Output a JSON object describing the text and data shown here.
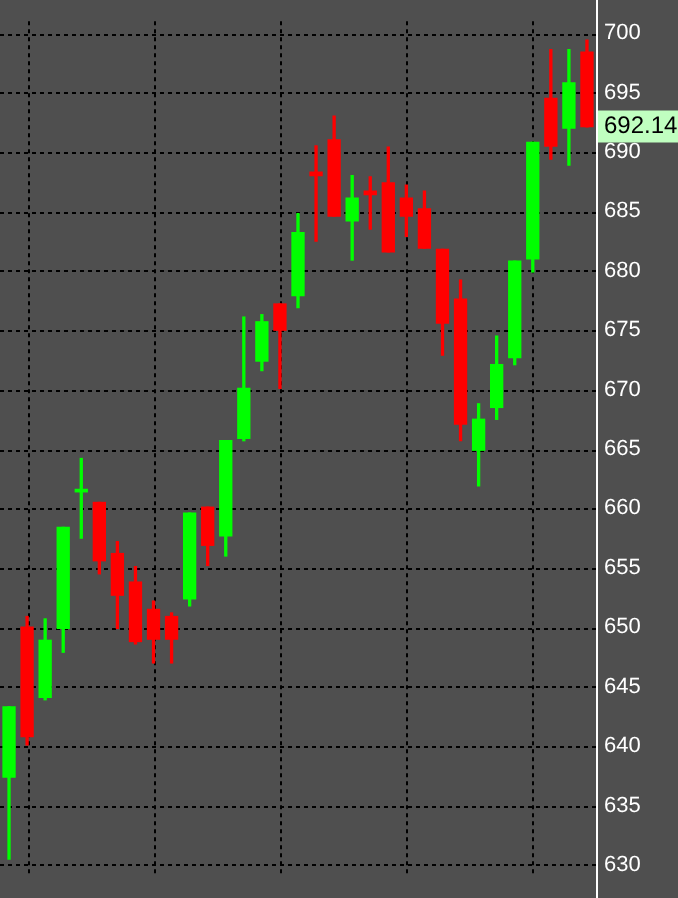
{
  "chart_data": {
    "type": "candlestick",
    "categories": [
      null,
      null,
      null,
      null,
      null,
      null,
      null,
      null,
      null,
      null,
      null,
      null,
      null,
      null,
      null,
      null,
      null,
      null,
      null,
      null,
      null,
      null,
      null,
      null,
      null,
      null,
      null,
      null,
      null,
      null,
      null,
      null,
      null
    ],
    "ohlc": [
      [
        637.4,
        643.3,
        630.5,
        643.3
      ],
      [
        650.0,
        650.9,
        640.1,
        640.8
      ],
      [
        644.1,
        650.7,
        643.9,
        648.9
      ],
      [
        649.9,
        658.4,
        647.9,
        658.4
      ],
      [
        661.4,
        664.2,
        657.5,
        661.6
      ],
      [
        660.5,
        660.5,
        654.5,
        655.6
      ],
      [
        656.2,
        657.2,
        649.9,
        652.7
      ],
      [
        653.8,
        655.1,
        648.6,
        648.8
      ],
      [
        651.5,
        652.2,
        647.0,
        649.0
      ],
      [
        650.9,
        651.2,
        647.0,
        649.0
      ],
      [
        652.4,
        659.6,
        651.8,
        659.6
      ],
      [
        660.1,
        660.1,
        655.2,
        656.9
      ],
      [
        657.7,
        665.7,
        656.0,
        665.7
      ],
      [
        665.9,
        676.1,
        665.7,
        670.1
      ],
      [
        672.4,
        676.3,
        671.6,
        675.7
      ],
      [
        677.2,
        677.2,
        670.1,
        675.0
      ],
      [
        677.9,
        684.8,
        676.9,
        683.2
      ],
      [
        688.3,
        690.5,
        682.5,
        688.0
      ],
      [
        691.0,
        693.0,
        684.6,
        684.6
      ],
      [
        684.2,
        688.0,
        680.9,
        686.1
      ],
      [
        686.7,
        687.9,
        683.5,
        686.4
      ],
      [
        687.4,
        690.4,
        681.6,
        681.6
      ],
      [
        686.1,
        687.2,
        682.9,
        684.6
      ],
      [
        685.2,
        686.7,
        681.9,
        681.9
      ],
      [
        681.8,
        681.8,
        672.9,
        675.6
      ],
      [
        677.6,
        679.2,
        665.7,
        667.1
      ],
      [
        664.9,
        668.8,
        661.9,
        667.5
      ],
      [
        668.5,
        674.5,
        667.5,
        672.1
      ],
      [
        672.7,
        680.8,
        672.1,
        680.8
      ],
      [
        681.0,
        690.8,
        679.9,
        690.8
      ],
      [
        694.5,
        698.6,
        689.4,
        690.5
      ],
      [
        692.0,
        698.6,
        688.9,
        695.8
      ],
      [
        698.4,
        699.4,
        692.1,
        692.14
      ]
    ],
    "colors": [
      "#00ff00",
      "#ff0000",
      "#00ff00",
      "#00ff00",
      "#00ff00",
      "#ff0000",
      "#ff0000",
      "#ff0000",
      "#ff0000",
      "#ff0000",
      "#00ff00",
      "#ff0000",
      "#00ff00",
      "#00ff00",
      "#00ff00",
      "#ff0000",
      "#00ff00",
      "#ff0000",
      "#ff0000",
      "#00ff00",
      "#ff0000",
      "#ff0000",
      "#ff0000",
      "#ff0000",
      "#ff0000",
      "#ff0000",
      "#00ff00",
      "#00ff00",
      "#00ff00",
      "#00ff00",
      "#ff0000",
      "#00ff00",
      "#ff0000"
    ],
    "ylim": [
      629,
      701
    ],
    "yticks": [
      630,
      635,
      640,
      645,
      650,
      655,
      660,
      665,
      670,
      675,
      680,
      685,
      690,
      695,
      700
    ],
    "grid": true,
    "tick_labels": "y",
    "legend": false,
    "annotations": [
      {
        "text": "692.14",
        "y": 692.14
      }
    ]
  }
}
